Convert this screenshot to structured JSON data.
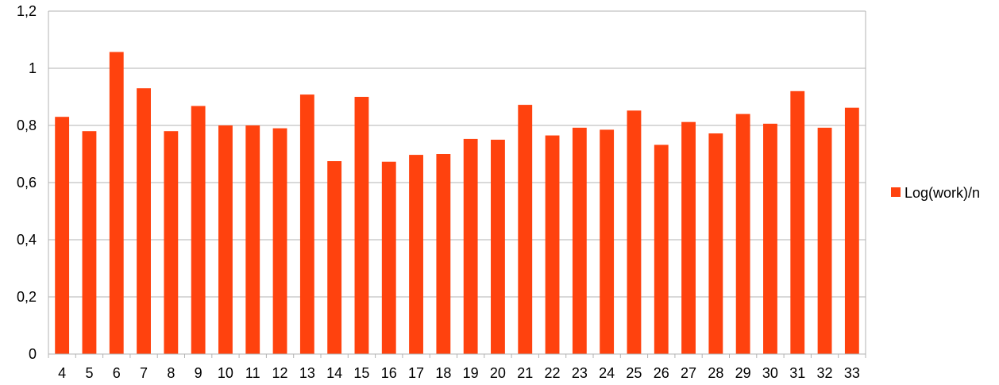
{
  "chart_data": {
    "type": "bar",
    "categories": [
      "4",
      "5",
      "6",
      "7",
      "8",
      "9",
      "10",
      "11",
      "12",
      "13",
      "14",
      "15",
      "16",
      "17",
      "18",
      "19",
      "20",
      "21",
      "22",
      "23",
      "24",
      "25",
      "26",
      "27",
      "28",
      "29",
      "30",
      "31",
      "32",
      "33"
    ],
    "series": [
      {
        "name": "Log(work)/n",
        "color": "#ff420e",
        "values": [
          0.83,
          0.78,
          1.057,
          0.93,
          0.78,
          0.868,
          0.8,
          0.8,
          0.79,
          0.908,
          0.675,
          0.9,
          0.673,
          0.697,
          0.7,
          0.753,
          0.75,
          0.872,
          0.765,
          0.792,
          0.785,
          0.852,
          0.732,
          0.812,
          0.772,
          0.84,
          0.806,
          0.92,
          0.792,
          0.862
        ]
      }
    ],
    "y_ticks": [
      "0",
      "0,2",
      "0,4",
      "0,6",
      "0,8",
      "1",
      "1,2"
    ],
    "ylim": [
      0,
      1.2
    ],
    "grid": true,
    "legend_position": "right"
  }
}
